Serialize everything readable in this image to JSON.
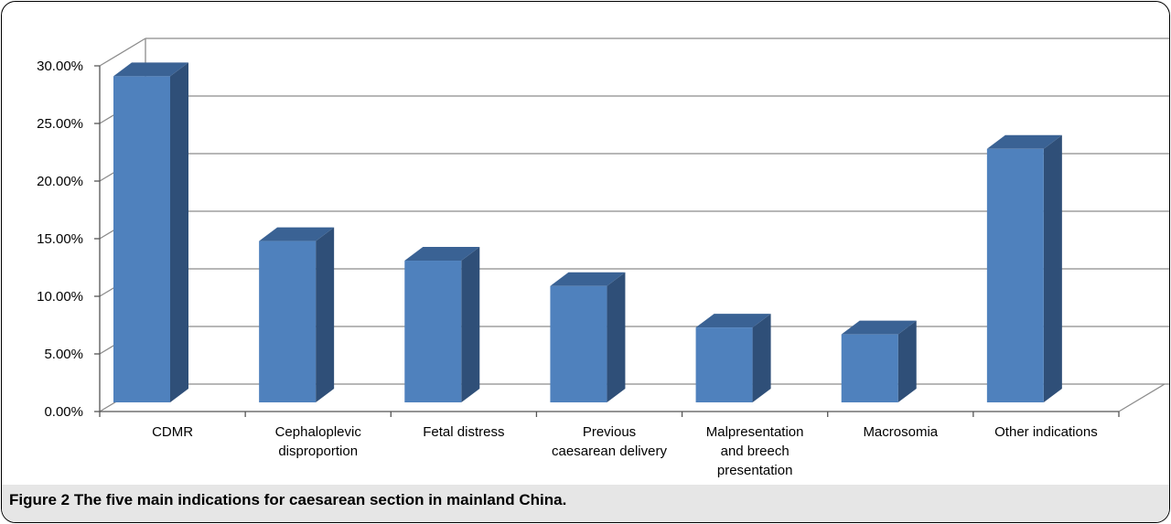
{
  "chart_data": {
    "type": "bar",
    "style": "3d-column",
    "categories": [
      "CDMR",
      "Cephaloplevic disproportion",
      "Fetal distress",
      "Previous caesarean delivery",
      "Malpresentation and breech presentation",
      "Macrosomia",
      "Other indications"
    ],
    "category_lines": [
      [
        "CDMR"
      ],
      [
        "Cephaloplevic",
        "disproportion"
      ],
      [
        "Fetal distress"
      ],
      [
        "Previous",
        "caesarean delivery"
      ],
      [
        "Malpresentation",
        "and breech",
        "presentation"
      ],
      [
        "Macrosomia"
      ],
      [
        "Other indications"
      ]
    ],
    "values": [
      28.3,
      14.0,
      12.3,
      10.1,
      6.5,
      5.9,
      22.0
    ],
    "ylim": [
      0,
      30
    ],
    "ytick_values": [
      0,
      5,
      10,
      15,
      20,
      25,
      30
    ],
    "ytick_labels": [
      "0.00%",
      "5.00%",
      "10.00%",
      "15.00%",
      "20.00%",
      "25.00%",
      "30.00%"
    ],
    "grid": true,
    "colors": {
      "front": "#4f81bd",
      "side": "#2f4f78",
      "top": "#3a6294",
      "grid": "#8c8c8c"
    }
  },
  "caption": "Figure 2 The five main indications for caesarean section in mainland China."
}
